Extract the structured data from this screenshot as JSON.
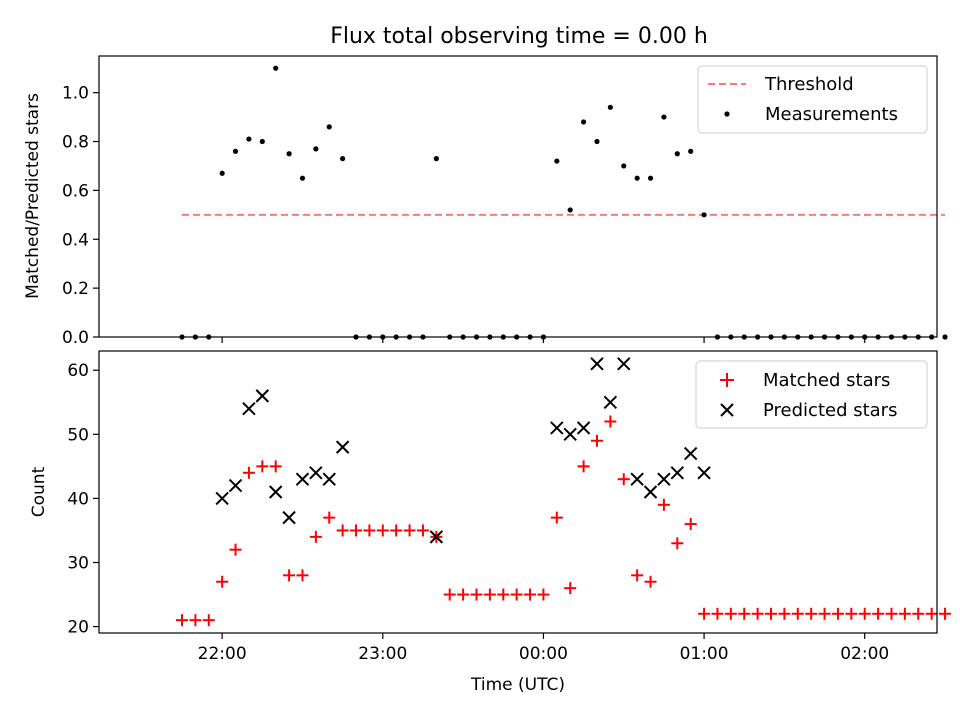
{
  "chart_data": [
    {
      "type": "scatter",
      "title": "Flux total observing time = 0.00 h",
      "xlabel": "",
      "ylabel": "Matched/Predicted stars",
      "xlim": [
        "21:14",
        "02:27"
      ],
      "ylim": [
        0,
        1.15
      ],
      "x_tick_labels_shown": false,
      "y_ticks": [
        0.0,
        0.2,
        0.4,
        0.6,
        0.8,
        1.0
      ],
      "y_tick_labels": [
        "0.0",
        "0.2",
        "0.4",
        "0.6",
        "0.8",
        "1.0"
      ],
      "legend_position": "top-right",
      "threshold": {
        "name": "Threshold",
        "value": 0.5,
        "x_range": [
          "21:45",
          "02:30"
        ],
        "color": "#ff7777",
        "style": "dashed"
      },
      "series": [
        {
          "name": "Measurements",
          "color": "#000000",
          "marker": "dot",
          "x": [
            "21:45",
            "21:50",
            "21:55",
            "22:00",
            "22:05",
            "22:10",
            "22:15",
            "22:20",
            "22:25",
            "22:30",
            "22:35",
            "22:40",
            "22:45",
            "22:50",
            "22:55",
            "23:00",
            "23:05",
            "23:10",
            "23:15",
            "23:20",
            "23:25",
            "23:30",
            "23:35",
            "23:40",
            "23:45",
            "23:50",
            "23:55",
            "00:00",
            "00:05",
            "00:10",
            "00:15",
            "00:20",
            "00:25",
            "00:30",
            "00:35",
            "00:40",
            "00:45",
            "00:50",
            "00:55",
            "01:00",
            "01:05",
            "01:10",
            "01:15",
            "01:20",
            "01:25",
            "01:30",
            "01:35",
            "01:40",
            "01:45",
            "01:50",
            "01:55",
            "02:00",
            "02:05",
            "02:10",
            "02:15",
            "02:20",
            "02:25",
            "02:30"
          ],
          "y": [
            0,
            0,
            0,
            0.67,
            0.76,
            0.81,
            0.8,
            1.1,
            0.75,
            0.65,
            0.77,
            0.86,
            0.73,
            0,
            0,
            0,
            0,
            0,
            0,
            0.73,
            0,
            0,
            0,
            0,
            0,
            0,
            0,
            0,
            0.72,
            0.52,
            0.88,
            0.8,
            0.94,
            0.7,
            0.65,
            0.65,
            0.9,
            0.75,
            0.76,
            0.5,
            0,
            0,
            0,
            0,
            0,
            0,
            0,
            0,
            0,
            0,
            0,
            0,
            0,
            0,
            0,
            0,
            0,
            0
          ]
        }
      ]
    },
    {
      "type": "scatter",
      "title": "",
      "xlabel": "Time (UTC)",
      "ylabel": "Count",
      "xlim": [
        "21:14",
        "02:27"
      ],
      "ylim": [
        19,
        63
      ],
      "x_ticks": [
        "22:00",
        "23:00",
        "00:00",
        "01:00",
        "02:00"
      ],
      "y_ticks": [
        20,
        30,
        40,
        50,
        60
      ],
      "y_tick_labels": [
        "20",
        "30",
        "40",
        "50",
        "60"
      ],
      "legend_position": "top-right",
      "series": [
        {
          "name": "Matched stars",
          "color": "#ff0000",
          "marker": "plus",
          "x": [
            "21:45",
            "21:50",
            "21:55",
            "22:00",
            "22:05",
            "22:10",
            "22:15",
            "22:20",
            "22:25",
            "22:30",
            "22:35",
            "22:40",
            "22:45",
            "22:50",
            "22:55",
            "23:00",
            "23:05",
            "23:10",
            "23:15",
            "23:20",
            "23:25",
            "23:30",
            "23:35",
            "23:40",
            "23:45",
            "23:50",
            "23:55",
            "00:00",
            "00:05",
            "00:10",
            "00:15",
            "00:20",
            "00:25",
            "00:30",
            "00:35",
            "00:40",
            "00:45",
            "00:50",
            "00:55",
            "01:00",
            "01:05",
            "01:10",
            "01:15",
            "01:20",
            "01:25",
            "01:30",
            "01:35",
            "01:40",
            "01:45",
            "01:50",
            "01:55",
            "02:00",
            "02:05",
            "02:10",
            "02:15",
            "02:20",
            "02:25",
            "02:30"
          ],
          "y": [
            21,
            21,
            21,
            27,
            32,
            44,
            45,
            45,
            28,
            28,
            34,
            37,
            35,
            35,
            35,
            35,
            35,
            35,
            35,
            34,
            25,
            25,
            25,
            25,
            25,
            25,
            25,
            25,
            37,
            26,
            45,
            49,
            52,
            43,
            28,
            27,
            39,
            33,
            36,
            22,
            22,
            22,
            22,
            22,
            22,
            22,
            22,
            22,
            22,
            22,
            22,
            22,
            22,
            22,
            22,
            22,
            22,
            22
          ]
        },
        {
          "name": "Predicted stars",
          "color": "#000000",
          "marker": "x",
          "x": [
            "22:00",
            "22:05",
            "22:10",
            "22:15",
            "22:20",
            "22:25",
            "22:30",
            "22:35",
            "22:40",
            "22:45",
            "23:20",
            "00:05",
            "00:10",
            "00:15",
            "00:20",
            "00:25",
            "00:30",
            "00:35",
            "00:40",
            "00:45",
            "00:50",
            "00:55",
            "01:00"
          ],
          "y": [
            40,
            42,
            54,
            56,
            41,
            37,
            43,
            44,
            43,
            48,
            34,
            51,
            50,
            51,
            61,
            55,
            61,
            43,
            41,
            43,
            44,
            47,
            44
          ]
        }
      ]
    }
  ]
}
